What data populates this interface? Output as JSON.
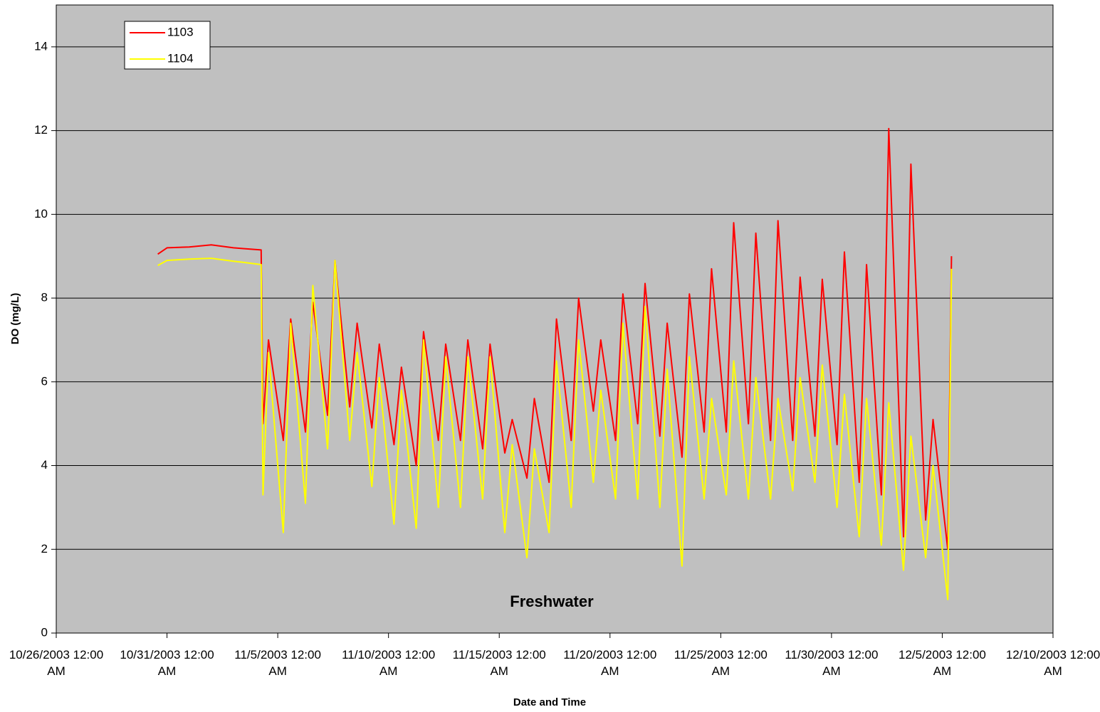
{
  "chart_data": {
    "type": "line",
    "annotation": "Freshwater",
    "xlabel": "Date and Time",
    "ylabel": "DO (mg/L)",
    "x": [
      "2003-10-30T14:00",
      "2003-10-31T00:00",
      "2003-11-01T00:00",
      "2003-11-02T00:00",
      "2003-11-03T00:00",
      "2003-11-03T12:00",
      "2003-11-04T06:00",
      "2003-11-04T08:00",
      "2003-11-04T14:00",
      "2003-11-05T06:00",
      "2003-11-05T14:00",
      "2003-11-06T06:00",
      "2003-11-06T14:00",
      "2003-11-07T06:00",
      "2003-11-07T14:00",
      "2003-11-08T06:00",
      "2003-11-08T14:00",
      "2003-11-09T06:00",
      "2003-11-09T14:00",
      "2003-11-10T06:00",
      "2003-11-10T14:00",
      "2003-11-11T06:00",
      "2003-11-11T14:00",
      "2003-11-12T06:00",
      "2003-11-12T14:00",
      "2003-11-13T06:00",
      "2003-11-13T14:00",
      "2003-11-14T06:00",
      "2003-11-14T14:00",
      "2003-11-15T06:00",
      "2003-11-15T14:00",
      "2003-11-16T06:00",
      "2003-11-16T14:00",
      "2003-11-17T06:00",
      "2003-11-17T14:00",
      "2003-11-18T06:00",
      "2003-11-18T14:00",
      "2003-11-19T06:00",
      "2003-11-19T14:00",
      "2003-11-20T06:00",
      "2003-11-20T14:00",
      "2003-11-21T06:00",
      "2003-11-21T14:00",
      "2003-11-22T06:00",
      "2003-11-22T14:00",
      "2003-11-23T06:00",
      "2003-11-23T14:00",
      "2003-11-24T06:00",
      "2003-11-24T14:00",
      "2003-11-25T06:00",
      "2003-11-25T14:00",
      "2003-11-26T06:00",
      "2003-11-26T14:00",
      "2003-11-27T06:00",
      "2003-11-27T14:00",
      "2003-11-28T06:00",
      "2003-11-28T14:00",
      "2003-11-29T06:00",
      "2003-11-29T14:00",
      "2003-11-30T06:00",
      "2003-11-30T14:00",
      "2003-12-01T06:00",
      "2003-12-01T14:00",
      "2003-12-02T06:00",
      "2003-12-02T14:00",
      "2003-12-03T06:00",
      "2003-12-03T14:00",
      "2003-12-04T06:00",
      "2003-12-04T14:00",
      "2003-12-05T06:00",
      "2003-12-05T10:00"
    ],
    "series": [
      {
        "name": "1103",
        "color": "#ff0000",
        "values": [
          9.05,
          9.2,
          9.22,
          9.27,
          9.2,
          9.18,
          9.15,
          5.0,
          7.0,
          4.6,
          7.5,
          4.8,
          7.9,
          5.2,
          8.9,
          5.4,
          7.4,
          4.9,
          6.9,
          4.5,
          6.35,
          4.0,
          7.2,
          4.6,
          6.9,
          4.6,
          7.0,
          4.4,
          6.9,
          4.3,
          5.1,
          3.7,
          5.6,
          3.6,
          7.5,
          4.6,
          8.0,
          5.3,
          7.0,
          4.6,
          8.1,
          5.0,
          8.35,
          4.7,
          7.4,
          4.2,
          8.1,
          4.8,
          8.7,
          4.8,
          9.8,
          5.0,
          9.55,
          4.6,
          9.85,
          4.6,
          8.5,
          4.7,
          8.45,
          4.5,
          9.1,
          3.6,
          8.8,
          3.3,
          12.05,
          2.3,
          11.2,
          2.7,
          5.1,
          2.0,
          9.0
        ]
      },
      {
        "name": "1104",
        "color": "#ffff00",
        "values": [
          8.78,
          8.9,
          8.93,
          8.95,
          8.88,
          8.85,
          8.8,
          3.3,
          6.7,
          2.4,
          7.4,
          3.1,
          8.3,
          4.4,
          8.9,
          4.6,
          6.7,
          3.5,
          6.1,
          2.6,
          5.8,
          2.5,
          7.0,
          3.0,
          6.6,
          3.0,
          6.6,
          3.2,
          6.6,
          2.4,
          4.5,
          1.8,
          4.4,
          2.4,
          6.5,
          3.0,
          7.0,
          3.6,
          5.8,
          3.2,
          7.4,
          3.2,
          7.8,
          3.0,
          6.3,
          1.6,
          6.6,
          3.2,
          5.6,
          3.3,
          6.5,
          3.2,
          6.1,
          3.2,
          5.6,
          3.4,
          6.1,
          3.6,
          6.4,
          3.0,
          5.7,
          2.3,
          5.6,
          2.1,
          5.5,
          1.5,
          4.7,
          1.8,
          4.0,
          0.8,
          8.7
        ]
      }
    ],
    "xlim": [
      "2003-10-26T00:00",
      "2003-12-10T00:00"
    ],
    "xticks": [
      {
        "value": "2003-10-26T00:00",
        "label": "10/26/2003 12:00 AM"
      },
      {
        "value": "2003-10-31T00:00",
        "label": "10/31/2003 12:00 AM"
      },
      {
        "value": "2003-11-05T00:00",
        "label": "11/5/2003 12:00 AM"
      },
      {
        "value": "2003-11-10T00:00",
        "label": "11/10/2003 12:00 AM"
      },
      {
        "value": "2003-11-15T00:00",
        "label": "11/15/2003 12:00 AM"
      },
      {
        "value": "2003-11-20T00:00",
        "label": "11/20/2003 12:00 AM"
      },
      {
        "value": "2003-11-25T00:00",
        "label": "11/25/2003 12:00 AM"
      },
      {
        "value": "2003-11-30T00:00",
        "label": "11/30/2003 12:00 AM"
      },
      {
        "value": "2003-12-05T00:00",
        "label": "12/5/2003 12:00 AM"
      },
      {
        "value": "2003-12-10T00:00",
        "label": "12/10/2003 12:00 AM"
      }
    ],
    "ylim": [
      0,
      15
    ],
    "yticks": [
      0,
      2,
      4,
      6,
      8,
      10,
      12,
      14
    ],
    "grid": true,
    "legend": "top-left"
  }
}
